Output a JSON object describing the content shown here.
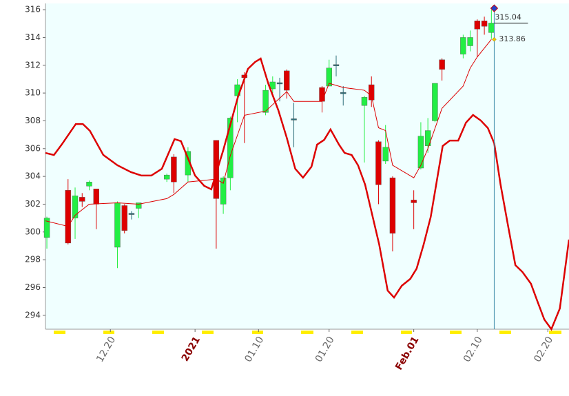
{
  "chart_data": {
    "type": "candlestick",
    "x": [
      0,
      3,
      4,
      5,
      6,
      7,
      10,
      11,
      12,
      13,
      17,
      18,
      20,
      24,
      25,
      26,
      27,
      28,
      31,
      32,
      33,
      34,
      35,
      39,
      40,
      41,
      42,
      45,
      46,
      47,
      48,
      49,
      52,
      53,
      54,
      55,
      56,
      59,
      60,
      61,
      62,
      63
    ],
    "open": [
      299.6,
      303.0,
      301.0,
      302.5,
      303.3,
      303.1,
      298.9,
      301.9,
      301.3,
      301.7,
      303.8,
      305.4,
      304.1,
      306.6,
      302.0,
      303.9,
      309.8,
      311.3,
      308.6,
      310.3,
      310.7,
      311.6,
      308.1,
      310.4,
      310.5,
      312.0,
      310.0,
      309.1,
      310.6,
      306.5,
      305.1,
      303.9,
      302.3,
      304.6,
      306.2,
      308.0,
      312.4,
      312.8,
      313.4,
      315.2,
      315.2,
      314.35
    ],
    "high": [
      301.1,
      303.8,
      303.2,
      302.8,
      303.7,
      303.1,
      302.2,
      302.0,
      301.5,
      302.1,
      304.2,
      305.6,
      306.1,
      306.6,
      304.0,
      308.3,
      311.0,
      311.5,
      310.6,
      311.2,
      311.1,
      311.7,
      309.3,
      310.5,
      312.4,
      312.7,
      310.5,
      309.8,
      311.2,
      306.6,
      307.7,
      304.0,
      303.0,
      307.9,
      308.2,
      310.7,
      312.5,
      314.2,
      314.5,
      315.3,
      315.5,
      316.0
    ],
    "low": [
      298.8,
      299.1,
      299.5,
      301.8,
      303.0,
      300.2,
      297.4,
      299.9,
      300.9,
      301.0,
      303.6,
      302.8,
      303.6,
      298.8,
      301.3,
      303.0,
      307.9,
      306.4,
      308.4,
      310.0,
      309.4,
      309.6,
      306.1,
      308.6,
      310.5,
      311.2,
      309.1,
      305.0,
      309.0,
      302.0,
      304.9,
      298.6,
      300.2,
      304.5,
      305.7,
      307.9,
      310.9,
      312.5,
      313.0,
      312.6,
      314.2,
      313.9
    ],
    "close": [
      301.0,
      299.2,
      302.6,
      302.2,
      303.6,
      302.0,
      302.1,
      300.1,
      301.3,
      302.1,
      304.1,
      303.6,
      305.8,
      302.4,
      303.9,
      308.2,
      310.6,
      311.1,
      310.2,
      310.8,
      310.7,
      310.2,
      308.1,
      309.4,
      311.8,
      312.0,
      310.0,
      309.7,
      309.5,
      303.4,
      306.1,
      299.9,
      302.1,
      306.9,
      307.3,
      310.7,
      311.7,
      314.0,
      314.0,
      314.6,
      314.8,
      315.04
    ],
    "up_color": "#22ee44",
    "down_color": "#dd0000",
    "doji_color": "#2e6f7a",
    "lines": [
      {
        "color": "#dd0000",
        "width": 1,
        "x": [
          -0.2,
          3,
          4,
          6,
          10,
          13,
          17,
          18,
          20,
          24,
          25,
          26,
          28,
          31,
          34,
          35,
          39,
          40,
          42,
          45,
          46,
          47,
          48,
          49,
          52,
          53,
          54,
          56,
          59,
          60,
          61,
          63
        ],
        "values": [
          300.8,
          300.4,
          301.2,
          302.0,
          302.1,
          302.0,
          302.4,
          302.7,
          303.6,
          303.8,
          303.5,
          305.5,
          308.4,
          308.7,
          310.1,
          309.4,
          309.4,
          310.7,
          310.4,
          310.2,
          309.8,
          307.5,
          307.3,
          304.8,
          303.9,
          304.8,
          306.0,
          308.9,
          310.5,
          311.8,
          312.6,
          313.86
        ]
      },
      {
        "color": "#dd0000",
        "width": 2.5,
        "x": [
          -0.2,
          1.0,
          2.1,
          4.1,
          5.1,
          6.1,
          8.0,
          10.0,
          11.9,
          13.4,
          14.8,
          16.3,
          18.1,
          19.0,
          21.0,
          22.3,
          23.3,
          25.0,
          27.1,
          28.5,
          29.5,
          30.3,
          31.4,
          32.8,
          34.0,
          35.2,
          36.3,
          37.5,
          38.3,
          39.3,
          40.2,
          41.4,
          42.2,
          43.2,
          44.1,
          45.1,
          47.1,
          48.3,
          49.2,
          50.3,
          51.5,
          52.4,
          53.4,
          54.4,
          56.1,
          57.1,
          58.3,
          59.4,
          60.4,
          61.5,
          62.5,
          63.4,
          64.3,
          65.4,
          66.4,
          67.4,
          68.6,
          69.5,
          70.5,
          71.5,
          72.7,
          74.0
        ],
        "values": [
          305.69,
          305.54,
          306.29,
          307.77,
          307.77,
          307.28,
          305.54,
          304.8,
          304.31,
          304.06,
          304.06,
          304.55,
          306.68,
          306.54,
          304.06,
          303.32,
          303.07,
          305.89,
          309.76,
          311.74,
          312.23,
          312.48,
          310.65,
          308.77,
          306.78,
          304.55,
          303.91,
          304.7,
          306.29,
          306.63,
          307.38,
          306.29,
          305.69,
          305.54,
          304.8,
          303.41,
          299.1,
          295.78,
          295.28,
          296.13,
          296.62,
          297.36,
          299.1,
          301.08,
          306.19,
          306.58,
          306.58,
          307.87,
          308.42,
          308.02,
          307.48,
          306.39,
          303.41,
          300.34,
          297.61,
          297.12,
          296.28,
          295.04,
          293.7,
          293.0,
          294.49,
          299.45
        ]
      }
    ],
    "cursor": {
      "x": 63.4,
      "marker_y": 316.1,
      "labels": [
        315.04,
        313.86
      ]
    },
    "xlim": [
      -0.2,
      74.0
    ],
    "ylim": [
      293.0,
      316.45
    ],
    "xticks": [
      {
        "value": 9,
        "label": "12.20"
      },
      {
        "value": 21,
        "label": "2021"
      },
      {
        "value": 30,
        "label": "01.10"
      },
      {
        "value": 40,
        "label": "01.20"
      },
      {
        "value": 52,
        "label": "Feb.01"
      },
      {
        "value": 61,
        "label": "02.10"
      },
      {
        "value": 71,
        "label": "02.20"
      }
    ],
    "yticks": [
      294,
      296,
      298,
      300,
      302,
      304,
      306,
      308,
      310,
      312,
      314,
      316
    ],
    "background": "#f0ffff"
  }
}
